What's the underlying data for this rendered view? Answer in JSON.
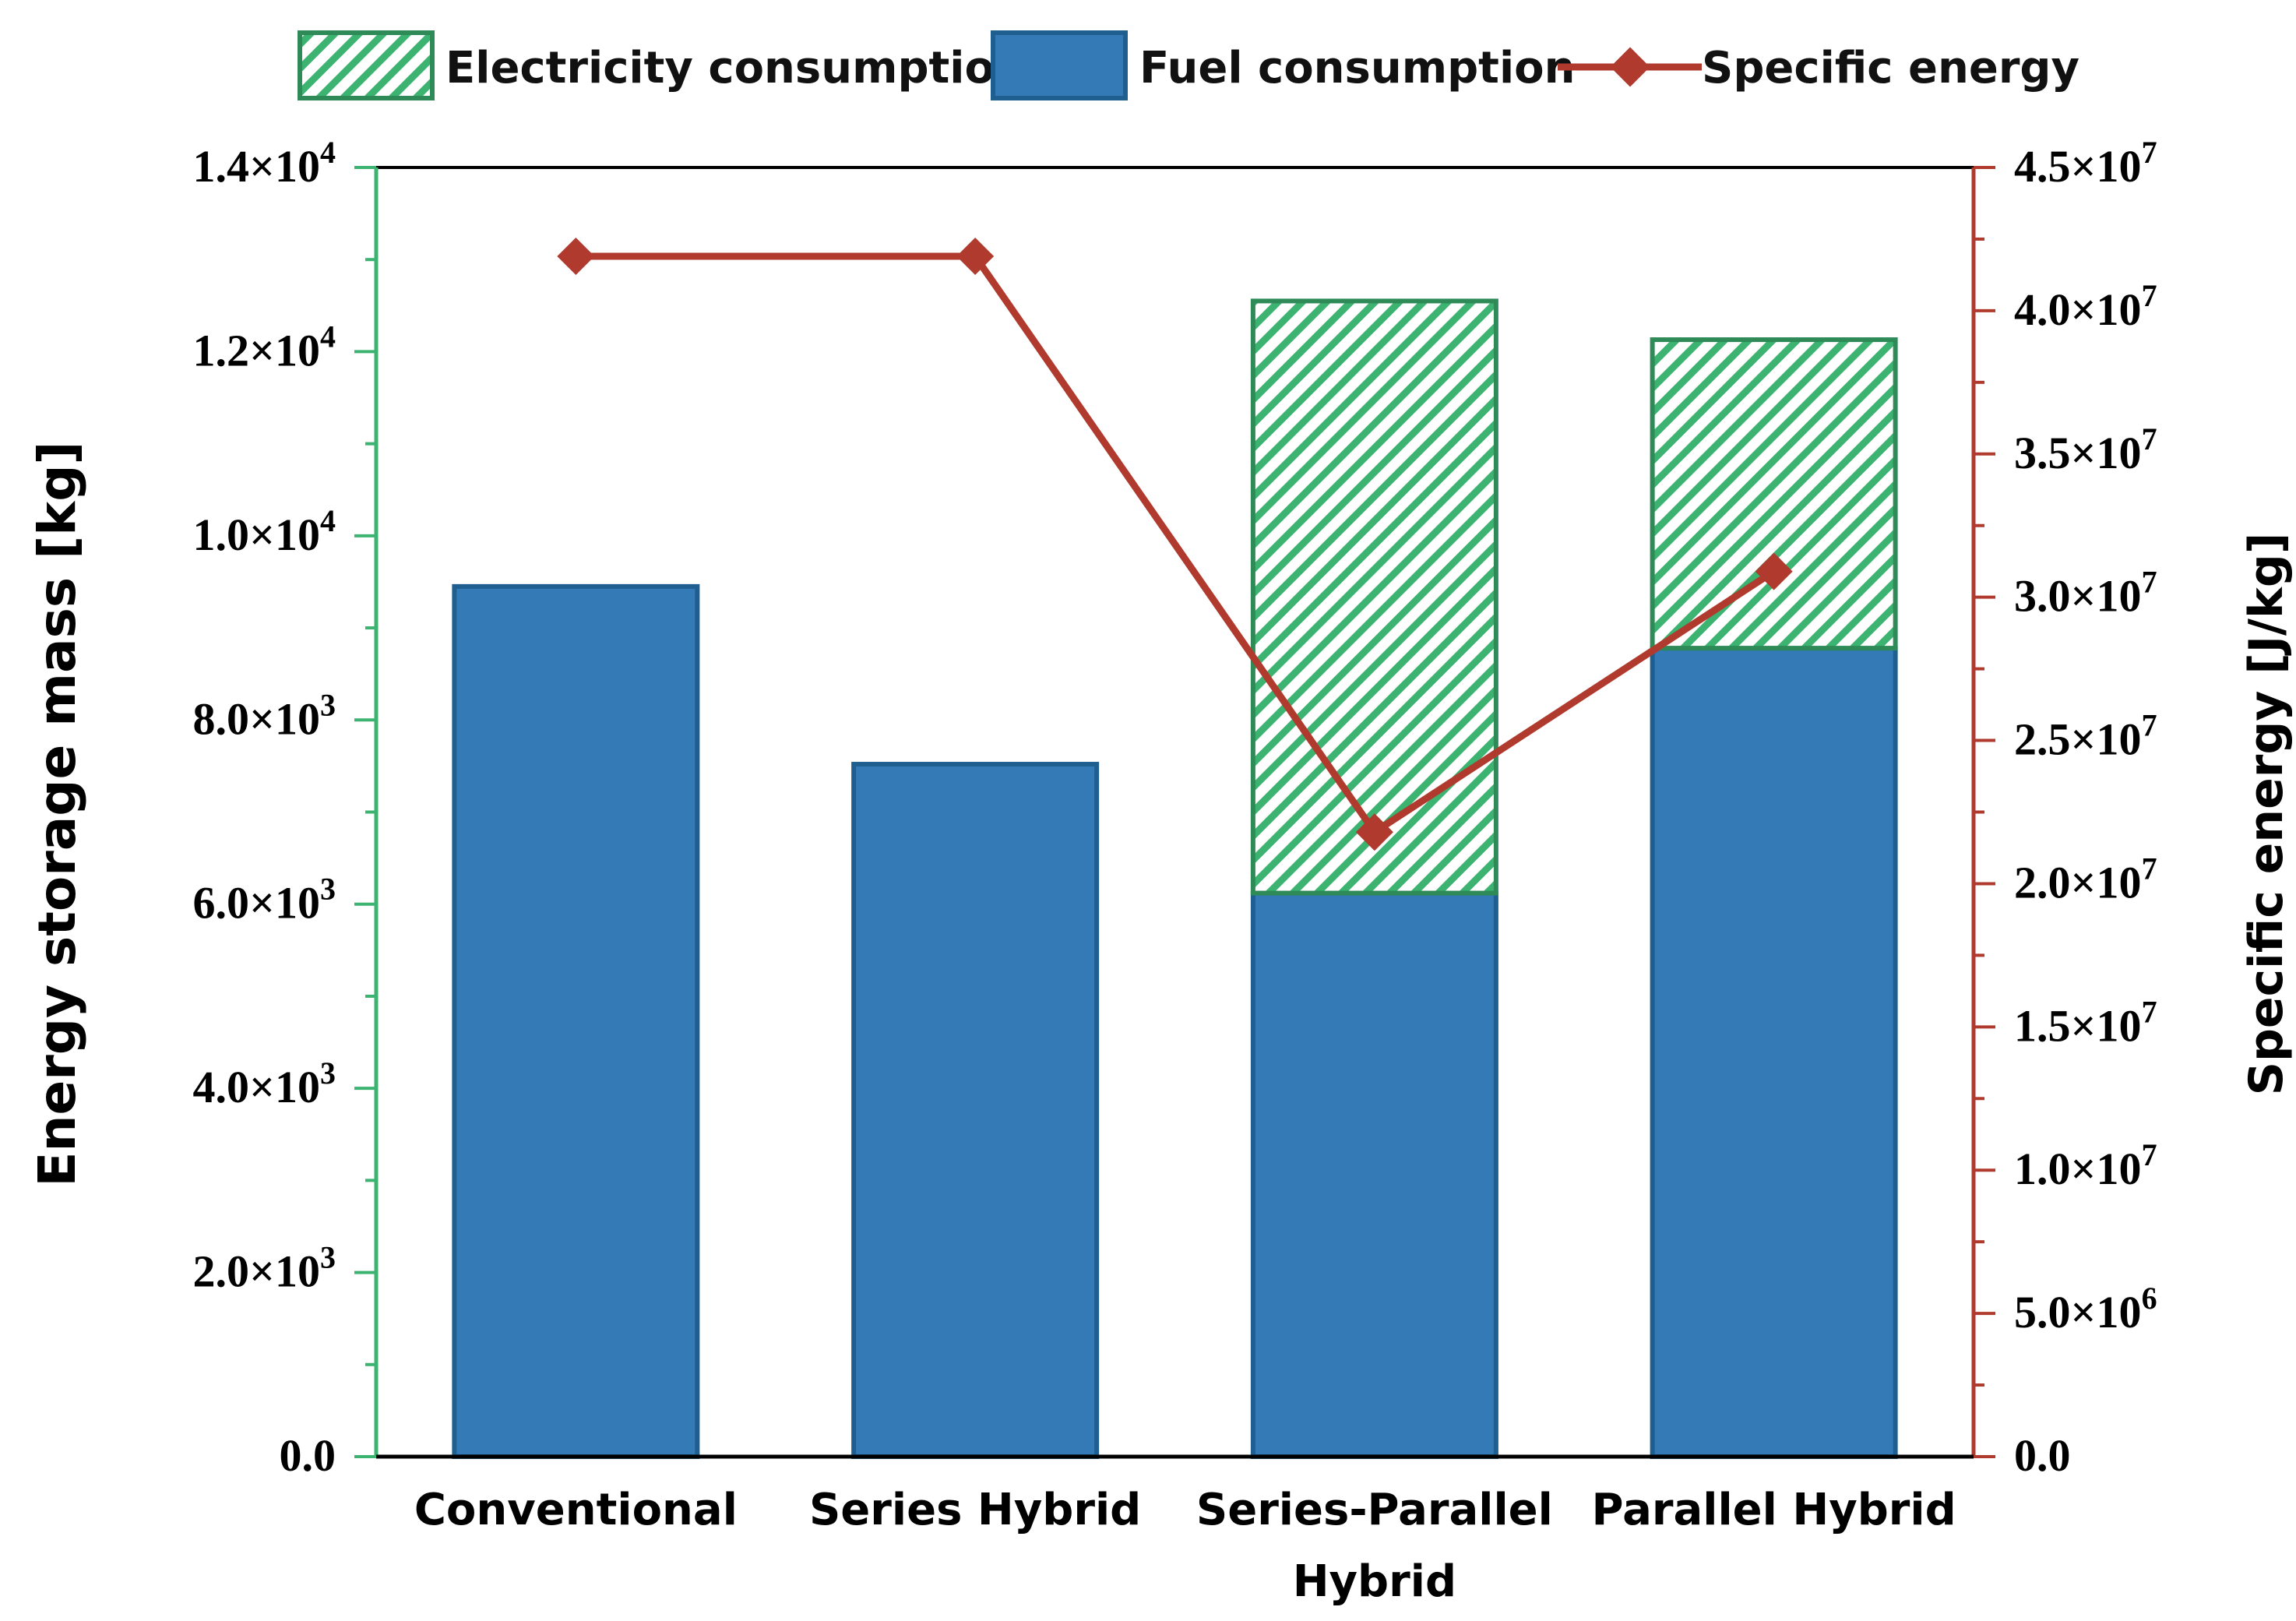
{
  "chart_data": {
    "type": "bar",
    "stacked": true,
    "categories": [
      "Conventional",
      "Series Hybrid",
      "Series-Parallel Hybrid",
      "Parallel Hybrid"
    ],
    "category_lines": [
      [
        "Conventional"
      ],
      [
        "Series Hybrid"
      ],
      [
        "Series-Parallel",
        "Hybrid"
      ],
      [
        "Parallel Hybrid"
      ]
    ],
    "series": [
      {
        "name": "Fuel consumption",
        "kind": "bar",
        "axis": "left",
        "values": [
          9450,
          7520,
          6120,
          8780
        ]
      },
      {
        "name": "Electricity consumption",
        "kind": "bar",
        "axis": "left",
        "values": [
          0,
          0,
          6430,
          3350
        ]
      },
      {
        "name": "Specific energy",
        "kind": "line",
        "axis": "right",
        "values": [
          41900000,
          41900000,
          21800000,
          30900000
        ]
      }
    ],
    "legend": {
      "placement": "top",
      "order": [
        "Electricity consumption",
        "Fuel consumption",
        "Specific energy"
      ]
    },
    "y_left": {
      "label": "Energy storage mass [kg]",
      "ylim": [
        0,
        14000
      ],
      "ticks": [
        {
          "value": 0,
          "mant": "0.0",
          "exp": ""
        },
        {
          "value": 2000,
          "mant": "2.0×10",
          "exp": "3"
        },
        {
          "value": 4000,
          "mant": "4.0×10",
          "exp": "3"
        },
        {
          "value": 6000,
          "mant": "6.0×10",
          "exp": "3"
        },
        {
          "value": 8000,
          "mant": "8.0×10",
          "exp": "3"
        },
        {
          "value": 10000,
          "mant": "1.0×10",
          "exp": "4"
        },
        {
          "value": 12000,
          "mant": "1.2×10",
          "exp": "4"
        },
        {
          "value": 14000,
          "mant": "1.4×10",
          "exp": "4"
        }
      ]
    },
    "y_right": {
      "label": "Specific energy [J/kg]",
      "ylim": [
        0,
        45000000
      ],
      "ticks": [
        {
          "value": 0,
          "mant": "0.0",
          "exp": ""
        },
        {
          "value": 5000000,
          "mant": "5.0×10",
          "exp": "6"
        },
        {
          "value": 10000000,
          "mant": "1.0×10",
          "exp": "7"
        },
        {
          "value": 15000000,
          "mant": "1.5×10",
          "exp": "7"
        },
        {
          "value": 20000000,
          "mant": "2.0×10",
          "exp": "7"
        },
        {
          "value": 25000000,
          "mant": "2.5×10",
          "exp": "7"
        },
        {
          "value": 30000000,
          "mant": "3.0×10",
          "exp": "7"
        },
        {
          "value": 35000000,
          "mant": "3.5×10",
          "exp": "7"
        },
        {
          "value": 40000000,
          "mant": "4.0×10",
          "exp": "7"
        },
        {
          "value": 45000000,
          "mant": "4.5×10",
          "exp": "7"
        }
      ]
    },
    "xlabel": "",
    "grid": false,
    "colors": {
      "fuel_fill": "#337ab7",
      "fuel_edge": "#1f5f8f",
      "electricity_hatch": "#3cb371",
      "electricity_edge": "#2e8b57",
      "specific_energy": "#b03a2e",
      "left_axis": "#3cb371",
      "right_axis": "#b03a2e"
    }
  }
}
